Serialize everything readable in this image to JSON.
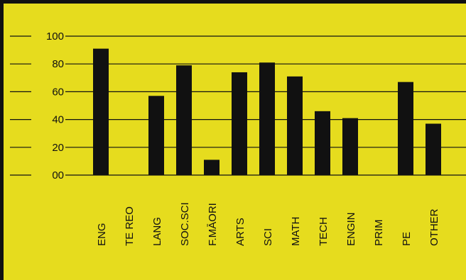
{
  "chart_data": {
    "type": "bar",
    "title": "",
    "xlabel": "",
    "ylabel": "",
    "categories": [
      "ENG",
      "TE REO",
      "LANG",
      "SOC.SCI",
      "F.MĀORI",
      "ARTS",
      "SCI",
      "MATH",
      "TECH",
      "ENGIN",
      "PRIM",
      "PE",
      "OTHER"
    ],
    "values": [
      91,
      0,
      57,
      79,
      11,
      74,
      81,
      71,
      46,
      41,
      0,
      67,
      37
    ],
    "yticks": [
      "00",
      "20",
      "40",
      "60",
      "80",
      "100"
    ],
    "ylim": [
      0,
      100
    ],
    "grid": true,
    "colors": {
      "background": "#e6dc1e",
      "bar": "#111111",
      "grid": "#111111"
    }
  }
}
